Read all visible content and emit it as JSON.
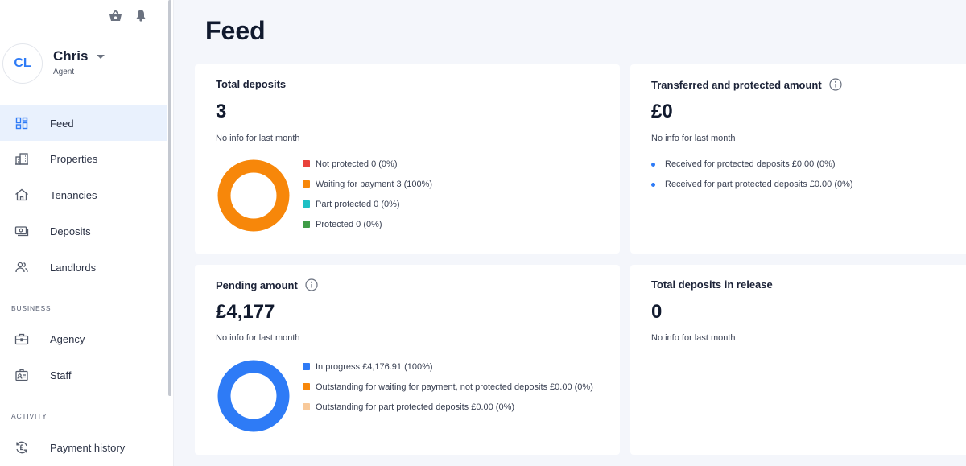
{
  "user": {
    "initials": "CL",
    "name": "Chris",
    "role": "Agent"
  },
  "nav": {
    "main": [
      {
        "label": "Feed",
        "icon": "dashboard-icon"
      },
      {
        "label": "Properties",
        "icon": "buildings-icon"
      },
      {
        "label": "Tenancies",
        "icon": "house-icon"
      },
      {
        "label": "Deposits",
        "icon": "cash-icon"
      },
      {
        "label": "Landlords",
        "icon": "people-icon"
      }
    ],
    "business_label": "BUSINESS",
    "business": [
      {
        "label": "Agency",
        "icon": "briefcase-icon"
      },
      {
        "label": "Staff",
        "icon": "id-badge-icon"
      }
    ],
    "activity_label": "ACTIVITY",
    "activity": [
      {
        "label": "Payment history",
        "icon": "pound-refresh-icon"
      }
    ]
  },
  "page_title": "Feed",
  "cards": {
    "total_deposits": {
      "title": "Total deposits",
      "value": "3",
      "sub": "No info for last month",
      "legend": [
        {
          "label": "Not protected 0 (0%)",
          "color": "#e9423b"
        },
        {
          "label": "Waiting for payment 3 (100%)",
          "color": "#f7870a"
        },
        {
          "label": "Part protected 0 (0%)",
          "color": "#1fc0c4"
        },
        {
          "label": "Protected 0 (0%)",
          "color": "#3f9c47"
        }
      ],
      "donut_values": [
        0,
        3,
        0,
        0
      ]
    },
    "transferred": {
      "title": "Transferred and protected amount",
      "value": "£0",
      "sub": "No info for last month",
      "bullets": [
        "Received for protected deposits £0.00 (0%)",
        "Received for part protected deposits £0.00 (0%)"
      ]
    },
    "pending": {
      "title": "Pending amount",
      "value": "£4,177",
      "sub": "No info for last month",
      "legend": [
        {
          "label": "In progress £4,176.91 (100%)",
          "color": "#2e7bf6"
        },
        {
          "label": "Outstanding for waiting for payment, not protected deposits £0.00 (0%)",
          "color": "#f7870a"
        },
        {
          "label": "Outstanding for part protected deposits £0.00 (0%)",
          "color": "#f8c99a"
        }
      ],
      "donut_values": [
        4176.91,
        0,
        0
      ]
    },
    "release": {
      "title": "Total deposits in release",
      "value": "0",
      "sub": "No info for last month"
    }
  }
}
